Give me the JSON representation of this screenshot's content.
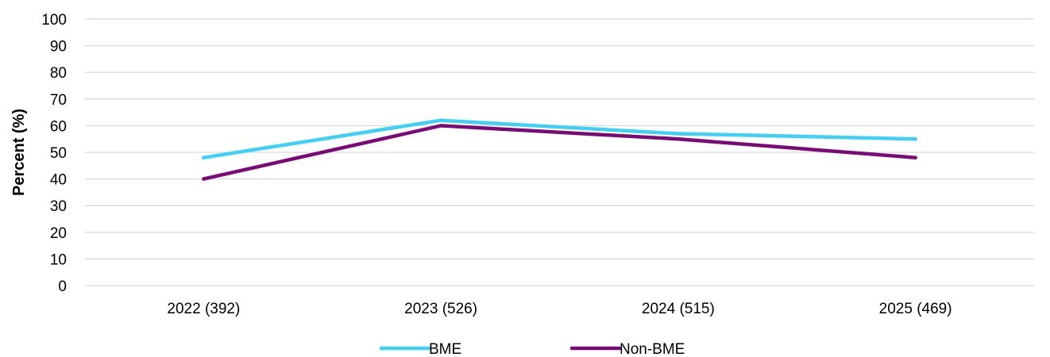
{
  "chart_data": {
    "type": "line",
    "categories": [
      "2022 (392)",
      "2023 (526)",
      "2024 (515)",
      "2025 (469)"
    ],
    "series": [
      {
        "name": "BME",
        "color": "#3fd0f8",
        "values": [
          48,
          62,
          57,
          55
        ]
      },
      {
        "name": "Non-BME",
        "color": "#7b0a78",
        "values": [
          40,
          60,
          55,
          48
        ]
      }
    ],
    "title": "",
    "xlabel": "",
    "ylabel": "Percent (%)",
    "ylim": [
      0,
      100
    ],
    "yticks": [
      0,
      10,
      20,
      30,
      40,
      50,
      60,
      70,
      80,
      90,
      100
    ],
    "grid": true,
    "legend_position": "bottom"
  }
}
